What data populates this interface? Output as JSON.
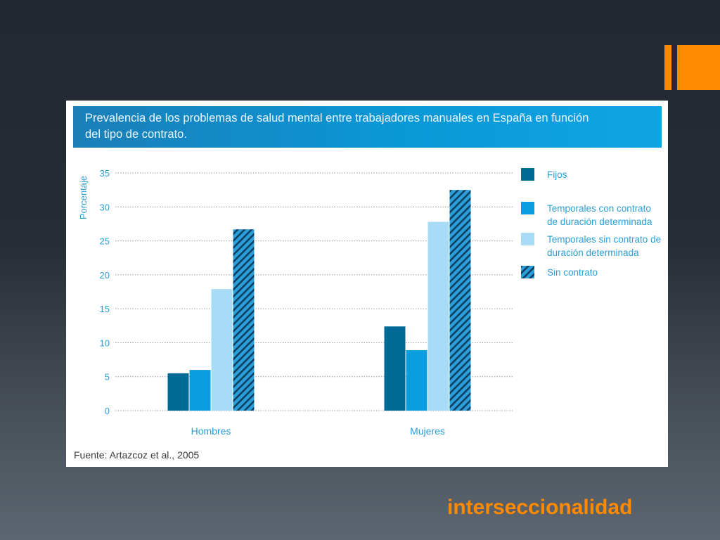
{
  "slide": {
    "accent_color": "#ff8a00",
    "keyword": "interseccionalidad"
  },
  "chart_data": {
    "type": "bar",
    "title": "Prevalencia de los problemas de salud mental entre trabajadores manuales en España en función del tipo de contrato.",
    "title_lines": [
      "Prevalencia de los problemas de salud mental entre trabajadores manuales en España en función",
      "del tipo de contrato."
    ],
    "ylabel": "Porcentaje",
    "xlabel": "",
    "ylim": [
      0,
      35
    ],
    "yticks": [
      0,
      5,
      10,
      15,
      20,
      25,
      30,
      35
    ],
    "grid": true,
    "legend_position": "right",
    "categories": [
      "Hombres",
      "Mujeres"
    ],
    "series": [
      {
        "name": "Fijos",
        "legend_lines": [
          "Fijos"
        ],
        "values": [
          5.5,
          12.4
        ],
        "color": "#006a96",
        "pattern": "solid"
      },
      {
        "name": "Temporales con contrato de duración determinada",
        "legend_lines": [
          "Temporales con contrato",
          "de duración determinada"
        ],
        "values": [
          6.0,
          8.9
        ],
        "color": "#0a9ee0",
        "pattern": "solid"
      },
      {
        "name": "Temporales sin contrato de duración determinada",
        "legend_lines": [
          "Temporales sin contrato de",
          "duración determinada"
        ],
        "values": [
          17.9,
          27.8
        ],
        "color": "#a8dcf6",
        "pattern": "solid"
      },
      {
        "name": "Sin contrato",
        "legend_lines": [
          "Sin contrato"
        ],
        "values": [
          26.7,
          32.5
        ],
        "color": "#2a9fd8",
        "pattern": "hatched"
      }
    ],
    "source": "Fuente: Artazcoz et al., 2005"
  }
}
